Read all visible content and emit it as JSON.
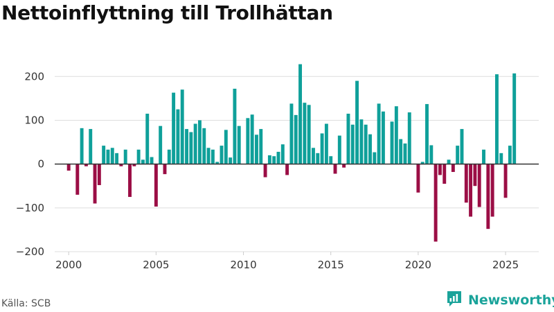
{
  "title": "Nettoinflyttning till Trollhättan",
  "source": "Källa: SCB",
  "brand": {
    "name": "Newsworthy",
    "icon": "newsworthy-logo-icon"
  },
  "colors": {
    "positive": "#0fa09a",
    "negative": "#9b0e45",
    "grid": "#dddddd",
    "zero": "#333333",
    "brand": "#1aa39a"
  },
  "chart_data": {
    "type": "bar",
    "title": "Nettoinflyttning till Trollhättan",
    "xlabel": "",
    "ylabel": "",
    "frequency": "quarterly",
    "start": [
      2000,
      1
    ],
    "xlim": [
      1999.2,
      2026.9
    ],
    "ylim": [
      -200,
      240
    ],
    "yticks": [
      -200,
      -100,
      0,
      100,
      200
    ],
    "ytick_labels": [
      "−200",
      "−100",
      "0",
      "100",
      "200"
    ],
    "xticks": [
      2000,
      2005,
      2010,
      2015,
      2020,
      2025
    ],
    "xtick_labels": [
      "2000",
      "2005",
      "2010",
      "2015",
      "2020",
      "2025"
    ],
    "values": [
      -15,
      0,
      -70,
      82,
      -5,
      80,
      -90,
      -48,
      42,
      33,
      37,
      25,
      -5,
      33,
      -75,
      -5,
      33,
      10,
      115,
      16,
      -97,
      87,
      -23,
      33,
      163,
      125,
      170,
      80,
      73,
      92,
      100,
      82,
      37,
      33,
      5,
      42,
      78,
      15,
      172,
      87,
      0,
      105,
      113,
      67,
      80,
      -30,
      20,
      18,
      28,
      45,
      -25,
      138,
      112,
      228,
      140,
      135,
      37,
      25,
      70,
      92,
      18,
      -22,
      65,
      -8,
      115,
      90,
      190,
      102,
      90,
      68,
      27,
      138,
      120,
      0,
      97,
      132,
      57,
      47,
      118,
      0,
      -65,
      5,
      137,
      43,
      -177,
      -25,
      -45,
      10,
      -18,
      42,
      80,
      -88,
      -120,
      -50,
      -98,
      33,
      -148,
      -120,
      205,
      25,
      -77,
      42,
      207
    ]
  }
}
